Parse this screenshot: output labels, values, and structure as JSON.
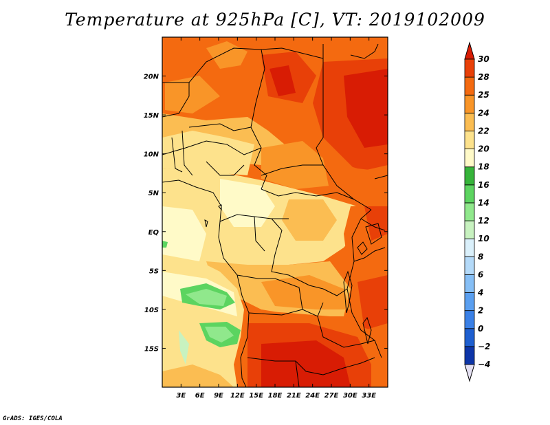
{
  "title": "Temperature at 925hPa [C], VT: 2019102009",
  "credit": "GrADS: IGES/COLA",
  "map": {
    "lon_range": [
      0,
      36
    ],
    "lat_range": [
      -20,
      25
    ],
    "lon_ticks": [
      {
        "value": 3,
        "label": "3E"
      },
      {
        "value": 6,
        "label": "6E"
      },
      {
        "value": 9,
        "label": "9E"
      },
      {
        "value": 12,
        "label": "12E"
      },
      {
        "value": 15,
        "label": "15E"
      },
      {
        "value": 18,
        "label": "18E"
      },
      {
        "value": 21,
        "label": "21E"
      },
      {
        "value": 24,
        "label": "24E"
      },
      {
        "value": 27,
        "label": "27E"
      },
      {
        "value": 30,
        "label": "30E"
      },
      {
        "value": 33,
        "label": "33E"
      }
    ],
    "lat_ticks": [
      {
        "value": 20,
        "label": "20N"
      },
      {
        "value": 15,
        "label": "15N"
      },
      {
        "value": 10,
        "label": "10N"
      },
      {
        "value": 5,
        "label": "5N"
      },
      {
        "value": 0,
        "label": "EQ"
      },
      {
        "value": -5,
        "label": "5S"
      },
      {
        "value": -10,
        "label": "10S"
      },
      {
        "value": -15,
        "label": "15S"
      }
    ]
  },
  "colorbar": {
    "levels": [
      -4,
      -2,
      0,
      2,
      4,
      6,
      8,
      10,
      12,
      14,
      16,
      18,
      20,
      22,
      24,
      25,
      28,
      30
    ],
    "colors": [
      "#0a1a6a",
      "#0d35a8",
      "#1e5fd0",
      "#3a80e6",
      "#5a9ff0",
      "#86bff6",
      "#b4daf9",
      "#daf0fb",
      "#c8f2c0",
      "#90e88c",
      "#5cd460",
      "#36b43a",
      "#fffac8",
      "#fde28c",
      "#fbbd52",
      "#f99528",
      "#f46a10",
      "#e84008",
      "#d81c04"
    ],
    "low_extend_color": "#e4e0f2",
    "high_extend_color": "#d81c04"
  }
}
